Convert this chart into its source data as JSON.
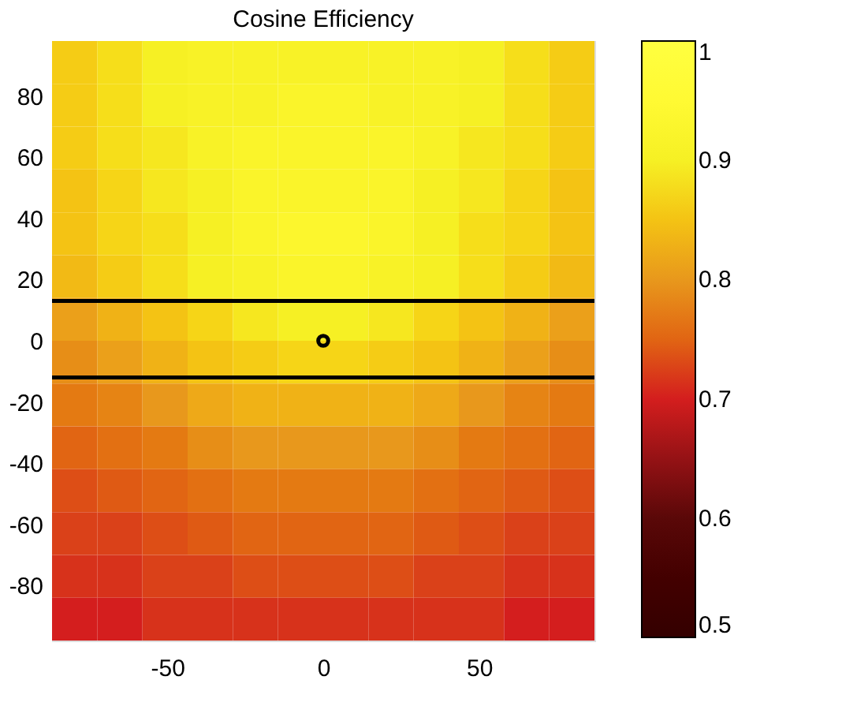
{
  "chart_data": {
    "type": "heatmap",
    "title": "Cosine Efficiency",
    "cells": [
      [
        0.86,
        0.88,
        0.9,
        0.91,
        0.91,
        0.91,
        0.91,
        0.91,
        0.91,
        0.9,
        0.88,
        0.86
      ],
      [
        0.86,
        0.88,
        0.9,
        0.91,
        0.91,
        0.92,
        0.92,
        0.91,
        0.91,
        0.9,
        0.88,
        0.86
      ],
      [
        0.86,
        0.88,
        0.89,
        0.91,
        0.92,
        0.92,
        0.92,
        0.92,
        0.91,
        0.89,
        0.88,
        0.86
      ],
      [
        0.85,
        0.87,
        0.89,
        0.9,
        0.92,
        0.92,
        0.92,
        0.92,
        0.9,
        0.89,
        0.87,
        0.85
      ],
      [
        0.85,
        0.87,
        0.88,
        0.9,
        0.92,
        0.93,
        0.93,
        0.92,
        0.9,
        0.88,
        0.87,
        0.85
      ],
      [
        0.84,
        0.86,
        0.88,
        0.9,
        0.91,
        0.92,
        0.92,
        0.91,
        0.9,
        0.88,
        0.86,
        0.84
      ],
      [
        0.81,
        0.83,
        0.85,
        0.87,
        0.89,
        0.9,
        0.9,
        0.89,
        0.87,
        0.85,
        0.83,
        0.81
      ],
      [
        0.79,
        0.81,
        0.83,
        0.85,
        0.86,
        0.87,
        0.87,
        0.86,
        0.85,
        0.83,
        0.81,
        0.79
      ],
      [
        0.77,
        0.78,
        0.8,
        0.82,
        0.83,
        0.83,
        0.83,
        0.83,
        0.82,
        0.8,
        0.78,
        0.77
      ],
      [
        0.75,
        0.76,
        0.77,
        0.79,
        0.8,
        0.8,
        0.8,
        0.8,
        0.79,
        0.77,
        0.76,
        0.75
      ],
      [
        0.73,
        0.74,
        0.75,
        0.76,
        0.77,
        0.77,
        0.77,
        0.77,
        0.76,
        0.75,
        0.74,
        0.73
      ],
      [
        0.72,
        0.72,
        0.73,
        0.74,
        0.75,
        0.75,
        0.75,
        0.75,
        0.74,
        0.73,
        0.72,
        0.72
      ],
      [
        0.71,
        0.71,
        0.72,
        0.72,
        0.73,
        0.73,
        0.73,
        0.73,
        0.72,
        0.72,
        0.71,
        0.71
      ],
      [
        0.7,
        0.7,
        0.71,
        0.71,
        0.71,
        0.71,
        0.71,
        0.71,
        0.71,
        0.71,
        0.7,
        0.7
      ]
    ],
    "xlim": [
      -87,
      87
    ],
    "xticks": [
      -50,
      0,
      50
    ],
    "ylim": [
      -98,
      98
    ],
    "yticks": [
      -80,
      -60,
      -40,
      -20,
      0,
      20,
      40,
      60,
      80
    ],
    "clim": [
      0.5,
      1
    ],
    "cticks": [
      0.5,
      0.6,
      0.7,
      0.8,
      0.9,
      1
    ],
    "ref_lines": [
      {
        "axis": "y",
        "value": 13,
        "color": "#000000"
      },
      {
        "axis": "y",
        "value": -12,
        "color": "#000000"
      }
    ],
    "series": [
      {
        "type": "scatter",
        "x": [
          0
        ],
        "values": [
          0
        ],
        "color": "#000000",
        "marker": "circle"
      }
    ],
    "grid": false
  }
}
